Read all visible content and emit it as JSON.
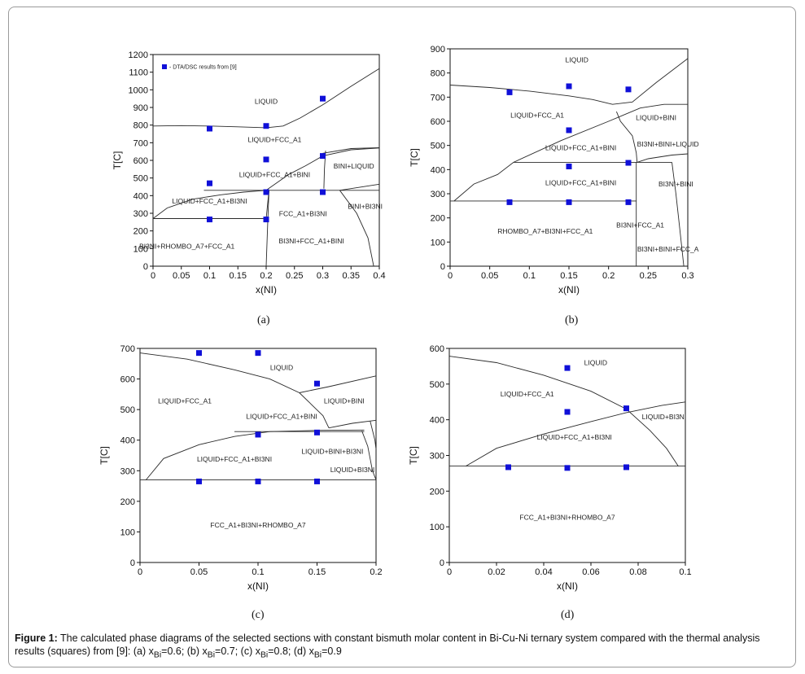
{
  "caption": {
    "label": "Figure 1:",
    "text": "The calculated phase diagrams of the selected sections with constant bismuth molar content in Bi-Cu-Ni ternary system compared with the thermal analysis results (squares) from [9]: (a) x",
    "parts": [
      {
        "sub": "Bi",
        "val": "=0.6; (b) x"
      },
      {
        "sub": "Bi",
        "val": "=0.7; (c) x"
      },
      {
        "sub": "Bi",
        "val": "=0.8; (d) x"
      },
      {
        "sub": "Bi",
        "val": "=0.9"
      }
    ]
  },
  "colors": {
    "marker": "#1010d8",
    "line": "#2a2a2a",
    "axis": "#111111"
  },
  "chart_data": [
    {
      "id": "a",
      "panel_label": "(a)",
      "type": "scatter",
      "xlabel": "x(NI)",
      "ylabel": "T[C]",
      "xlim": [
        0,
        0.4
      ],
      "ylim": [
        0,
        1200
      ],
      "xticks": [
        0,
        0.05,
        0.1,
        0.15,
        0.2,
        0.25,
        0.3,
        0.35,
        0.4
      ],
      "xticklabels": [
        "0",
        "0.05",
        "0.1",
        "0.15",
        "0.2",
        "0.25",
        "0.3",
        "0.35",
        "0.4"
      ],
      "yticks": [
        0,
        100,
        200,
        300,
        400,
        500,
        600,
        700,
        800,
        900,
        1000,
        1100,
        1200
      ],
      "legend": {
        "text": "- DTA/DSC results from [9]",
        "position": "top-left"
      },
      "points": [
        [
          0.1,
          780
        ],
        [
          0.2,
          795
        ],
        [
          0.3,
          950
        ],
        [
          0.3,
          625
        ],
        [
          0.2,
          605
        ],
        [
          0.1,
          470
        ],
        [
          0.2,
          420
        ],
        [
          0.3,
          420
        ],
        [
          0.1,
          265
        ],
        [
          0.2,
          265
        ]
      ],
      "lines": [
        [
          [
            0,
            795
          ],
          [
            0.05,
            797
          ],
          [
            0.1,
            795
          ],
          [
            0.15,
            790
          ],
          [
            0.2,
            785
          ],
          [
            0.23,
            795
          ],
          [
            0.26,
            840
          ],
          [
            0.3,
            915
          ],
          [
            0.35,
            1020
          ],
          [
            0.4,
            1120
          ]
        ],
        [
          [
            0,
            270
          ],
          [
            0.025,
            330
          ],
          [
            0.07,
            380
          ],
          [
            0.12,
            405
          ],
          [
            0.16,
            420
          ],
          [
            0.2,
            430
          ]
        ],
        [
          [
            0.09,
            430
          ],
          [
            0.4,
            430
          ]
        ],
        [
          [
            0.2,
            430
          ],
          [
            0.24,
            520
          ],
          [
            0.27,
            570
          ],
          [
            0.3,
            625
          ],
          [
            0.35,
            660
          ],
          [
            0.4,
            670
          ]
        ],
        [
          [
            0.3,
            640
          ],
          [
            0.35,
            667
          ],
          [
            0.4,
            672
          ]
        ],
        [
          [
            0.305,
            655
          ],
          [
            0.303,
            550
          ],
          [
            0.302,
            440
          ]
        ],
        [
          [
            0,
            270
          ],
          [
            0.2,
            270
          ]
        ],
        [
          [
            0.2,
            270
          ],
          [
            0.205,
            430
          ]
        ],
        [
          [
            0.2,
            0
          ],
          [
            0.203,
            270
          ],
          [
            0.205,
            430
          ]
        ],
        [
          [
            0.33,
            430
          ],
          [
            0.36,
            300
          ],
          [
            0.38,
            160
          ],
          [
            0.39,
            0
          ]
        ],
        [
          [
            0.33,
            430
          ],
          [
            0.4,
            465
          ]
        ]
      ],
      "labels": [
        {
          "text": "LIQUID",
          "x": 0.2,
          "y": 920
        },
        {
          "text": "LIQUID+FCC_A1",
          "x": 0.215,
          "y": 705
        },
        {
          "text": "LIQUID+FCC_A1+BINI",
          "x": 0.215,
          "y": 505
        },
        {
          "text": "BINI+LIQUID",
          "x": 0.355,
          "y": 555
        },
        {
          "text": "LIQUID+FCC_A1+BI3NI",
          "x": 0.1,
          "y": 355
        },
        {
          "text": "FCC_A1+BI3NI",
          "x": 0.265,
          "y": 285
        },
        {
          "text": "BINI+BI3NI",
          "x": 0.375,
          "y": 325
        },
        {
          "text": "BI3NI+RHOMBO_A7+FCC_A1",
          "x": 0.06,
          "y": 100
        },
        {
          "text": "BI3NI+FCC_A1+BINI",
          "x": 0.28,
          "y": 130
        }
      ]
    },
    {
      "id": "b",
      "panel_label": "(b)",
      "type": "scatter",
      "xlabel": "x(NI)",
      "ylabel": "T[C]",
      "xlim": [
        0,
        0.3
      ],
      "ylim": [
        0,
        900
      ],
      "xticks": [
        0,
        0.05,
        0.1,
        0.15,
        0.2,
        0.25,
        0.3
      ],
      "xticklabels": [
        "0",
        "0.05",
        "0.1",
        "0.15",
        "0.2",
        "0.25",
        "0.3"
      ],
      "yticks": [
        0,
        100,
        200,
        300,
        400,
        500,
        600,
        700,
        800,
        900
      ],
      "points": [
        [
          0.075,
          720
        ],
        [
          0.15,
          745
        ],
        [
          0.225,
          732
        ],
        [
          0.15,
          563
        ],
        [
          0.15,
          413
        ],
        [
          0.225,
          428
        ],
        [
          0.075,
          265
        ],
        [
          0.15,
          265
        ],
        [
          0.225,
          265
        ]
      ],
      "lines": [
        [
          [
            0,
            750
          ],
          [
            0.05,
            740
          ],
          [
            0.1,
            725
          ],
          [
            0.15,
            705
          ],
          [
            0.18,
            690
          ],
          [
            0.205,
            670
          ],
          [
            0.23,
            680
          ],
          [
            0.26,
            760
          ],
          [
            0.3,
            860
          ]
        ],
        [
          [
            0.005,
            270
          ],
          [
            0.03,
            340
          ],
          [
            0.06,
            380
          ],
          [
            0.08,
            430
          ],
          [
            0.14,
            520
          ],
          [
            0.2,
            600
          ],
          [
            0.24,
            655
          ],
          [
            0.27,
            670
          ],
          [
            0.3,
            670
          ]
        ],
        [
          [
            0.08,
            430
          ],
          [
            0.28,
            430
          ]
        ],
        [
          [
            0.21,
            640
          ],
          [
            0.215,
            600
          ],
          [
            0.23,
            540
          ],
          [
            0.235,
            470
          ],
          [
            0.236,
            430
          ]
        ],
        [
          [
            0.236,
            430
          ],
          [
            0.25,
            445
          ],
          [
            0.28,
            460
          ],
          [
            0.3,
            465
          ]
        ],
        [
          [
            0,
            270
          ],
          [
            0.235,
            270
          ]
        ],
        [
          [
            0.235,
            430
          ],
          [
            0.235,
            0
          ]
        ],
        [
          [
            0.28,
            430
          ],
          [
            0.285,
            300
          ],
          [
            0.29,
            150
          ],
          [
            0.295,
            0
          ]
        ]
      ],
      "labels": [
        {
          "text": "LIQUID",
          "x": 0.16,
          "y": 845
        },
        {
          "text": "LIQUID+FCC_A1",
          "x": 0.11,
          "y": 615
        },
        {
          "text": "LIQUID+BINI",
          "x": 0.26,
          "y": 605
        },
        {
          "text": "LIQUID+FCC_A1+BINI",
          "x": 0.165,
          "y": 480
        },
        {
          "text": "BI3NI+BINI+LIQUID",
          "x": 0.275,
          "y": 495
        },
        {
          "text": "LIQUID+FCC_A1+BINI",
          "x": 0.165,
          "y": 335
        },
        {
          "text": "BI3NI+BINI",
          "x": 0.285,
          "y": 330
        },
        {
          "text": "RHOMBO_A7+BI3NI+FCC_A1",
          "x": 0.12,
          "y": 135
        },
        {
          "text": "BI3NI+FCC_A1",
          "x": 0.24,
          "y": 160
        },
        {
          "text": "BI3NI+BINI+FCC_A",
          "x": 0.275,
          "y": 60
        }
      ]
    },
    {
      "id": "c",
      "panel_label": "(c)",
      "type": "scatter",
      "xlabel": "x(NI)",
      "ylabel": "T[C]",
      "xlim": [
        0,
        0.2
      ],
      "ylim": [
        0,
        700
      ],
      "xticks": [
        0,
        0.05,
        0.1,
        0.15,
        0.2
      ],
      "xticklabels": [
        "0",
        "0.05",
        "0.1",
        "0.15",
        "0.2"
      ],
      "yticks": [
        0,
        100,
        200,
        300,
        400,
        500,
        600,
        700
      ],
      "points": [
        [
          0.05,
          685
        ],
        [
          0.1,
          685
        ],
        [
          0.15,
          585
        ],
        [
          0.1,
          418
        ],
        [
          0.15,
          425
        ],
        [
          0.05,
          265
        ],
        [
          0.1,
          265
        ],
        [
          0.15,
          265
        ]
      ],
      "lines": [
        [
          [
            0,
            685
          ],
          [
            0.04,
            665
          ],
          [
            0.08,
            630
          ],
          [
            0.11,
            600
          ],
          [
            0.135,
            555
          ],
          [
            0.155,
            480
          ],
          [
            0.16,
            440
          ]
        ],
        [
          [
            0.135,
            555
          ],
          [
            0.16,
            575
          ],
          [
            0.2,
            610
          ]
        ],
        [
          [
            0.005,
            270
          ],
          [
            0.02,
            340
          ],
          [
            0.05,
            385
          ],
          [
            0.08,
            412
          ],
          [
            0.11,
            428
          ],
          [
            0.15,
            432
          ],
          [
            0.19,
            433
          ]
        ],
        [
          [
            0.08,
            428
          ],
          [
            0.19,
            428
          ]
        ],
        [
          [
            0.16,
            440
          ],
          [
            0.18,
            455
          ],
          [
            0.2,
            465
          ]
        ],
        [
          [
            0,
            270
          ],
          [
            0.2,
            270
          ]
        ],
        [
          [
            0.188,
            430
          ],
          [
            0.193,
            380
          ],
          [
            0.197,
            300
          ],
          [
            0.2,
            270
          ]
        ],
        [
          [
            0.195,
            462
          ],
          [
            0.199,
            400
          ],
          [
            0.2,
            370
          ]
        ]
      ],
      "labels": [
        {
          "text": "LIQUID",
          "x": 0.12,
          "y": 630
        },
        {
          "text": "LIQUID+FCC_A1",
          "x": 0.038,
          "y": 520
        },
        {
          "text": "LIQUID+BINI",
          "x": 0.173,
          "y": 520
        },
        {
          "text": "LIQUID+FCC_A1+BINI",
          "x": 0.12,
          "y": 470
        },
        {
          "text": "LIQUID+FCC_A1+BI3NI",
          "x": 0.08,
          "y": 330
        },
        {
          "text": "LIQUID+BINI+BI3NI",
          "x": 0.163,
          "y": 355
        },
        {
          "text": "LIQUID+BI3NI",
          "x": 0.18,
          "y": 295
        },
        {
          "text": "FCC_A1+BI3NI+RHOMBO_A7",
          "x": 0.1,
          "y": 115
        }
      ]
    },
    {
      "id": "d",
      "panel_label": "(d)",
      "type": "scatter",
      "xlabel": "x(NI)",
      "ylabel": "T[C]",
      "xlim": [
        0,
        0.1
      ],
      "ylim": [
        0,
        600
      ],
      "xticks": [
        0,
        0.02,
        0.04,
        0.06,
        0.08,
        0.1
      ],
      "xticklabels": [
        "0",
        "0.02",
        "0.04",
        "0.06",
        "0.08",
        "0.1"
      ],
      "yticks": [
        0,
        100,
        200,
        300,
        400,
        500,
        600
      ],
      "points": [
        [
          0.05,
          545
        ],
        [
          0.05,
          422
        ],
        [
          0.075,
          432
        ],
        [
          0.025,
          267
        ],
        [
          0.05,
          265
        ],
        [
          0.075,
          267
        ]
      ],
      "lines": [
        [
          [
            0,
            578
          ],
          [
            0.02,
            560
          ],
          [
            0.04,
            525
          ],
          [
            0.06,
            480
          ],
          [
            0.075,
            430
          ],
          [
            0.085,
            370
          ],
          [
            0.092,
            320
          ],
          [
            0.097,
            270
          ]
        ],
        [
          [
            0.007,
            270
          ],
          [
            0.02,
            320
          ],
          [
            0.04,
            360
          ],
          [
            0.06,
            395
          ],
          [
            0.075,
            420
          ],
          [
            0.09,
            440
          ],
          [
            0.1,
            450
          ]
        ],
        [
          [
            0,
            270
          ],
          [
            0.1,
            270
          ]
        ]
      ],
      "labels": [
        {
          "text": "LIQUID",
          "x": 0.062,
          "y": 553
        },
        {
          "text": "LIQUID+FCC_A1",
          "x": 0.033,
          "y": 465
        },
        {
          "text": "LIQUID+BI3NI",
          "x": 0.091,
          "y": 402
        },
        {
          "text": "LIQUID+FCC_A1+BI3NI",
          "x": 0.053,
          "y": 345
        },
        {
          "text": "FCC_A1+BI3NI+RHOMBO_A7",
          "x": 0.05,
          "y": 120
        }
      ]
    }
  ]
}
